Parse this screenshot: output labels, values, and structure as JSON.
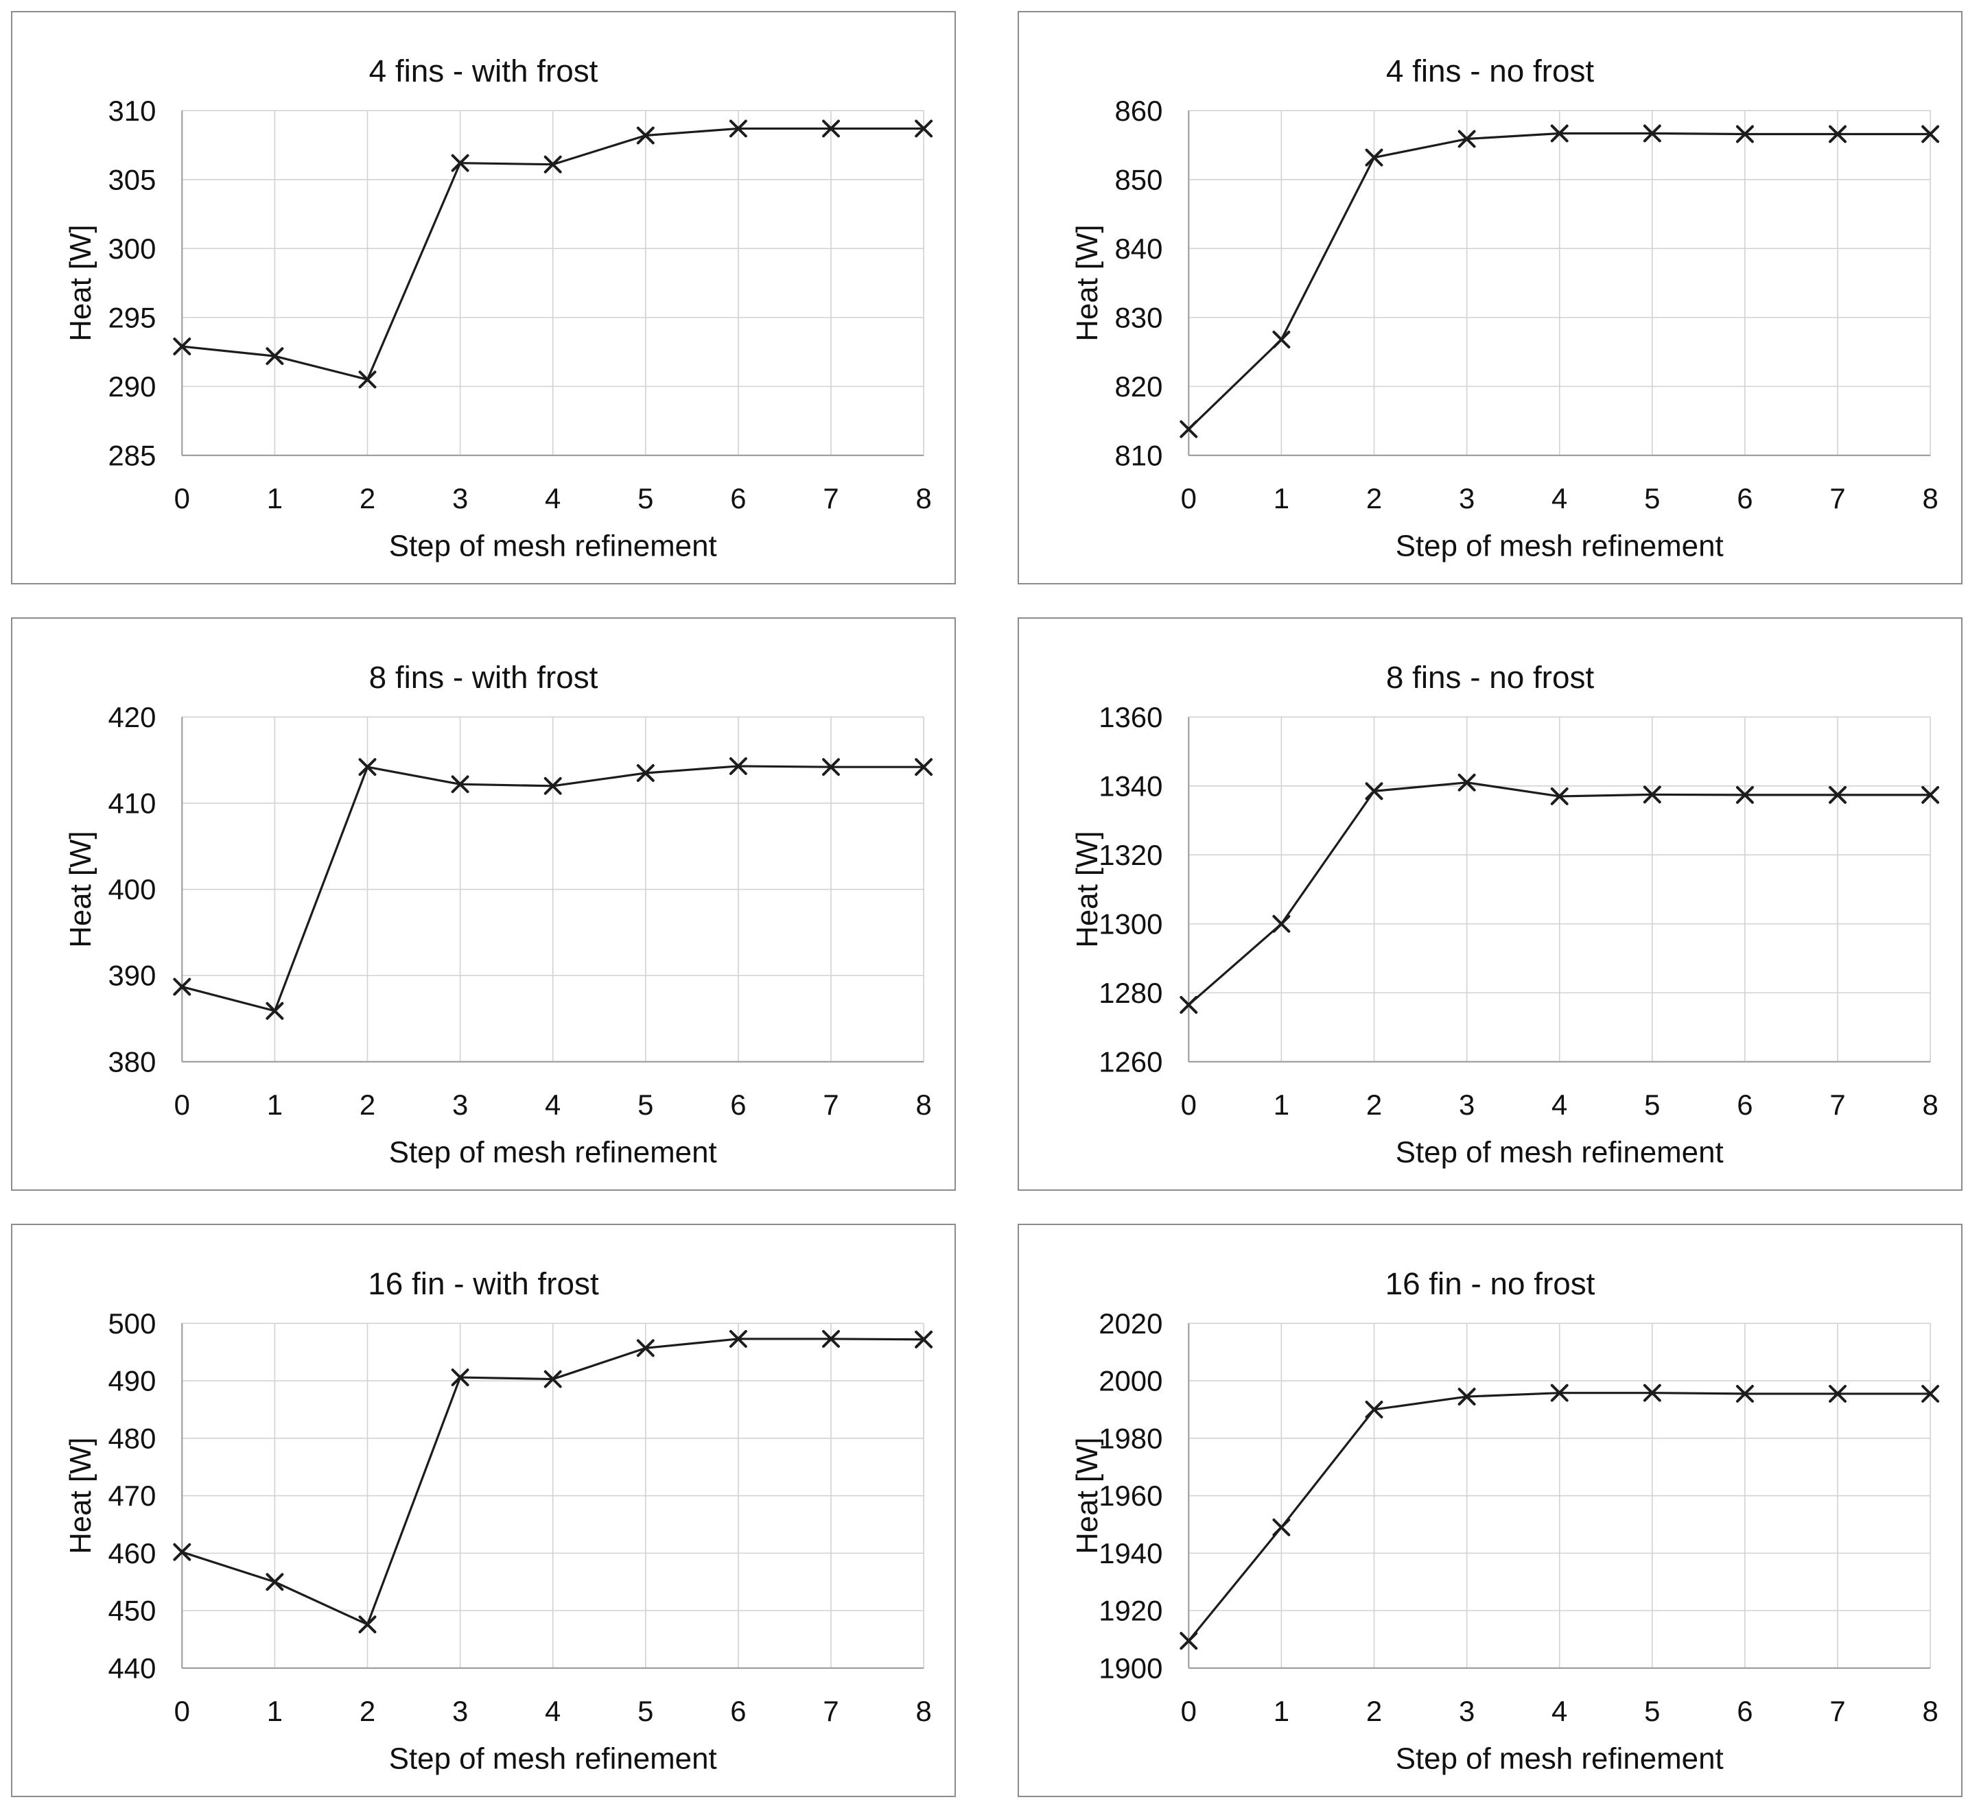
{
  "page": {
    "background": "#ffffff"
  },
  "style": {
    "series_color": "#1c1c1c",
    "grid_color": "#d2d2d2",
    "axis_color": "#a0a0a0",
    "text_color": "#111111",
    "panel_border_color": "#8c8c8c",
    "marker": "x"
  },
  "chart_data": [
    {
      "type": "line",
      "title": "4 fins - with frost",
      "xlabel": "Step of mesh refinement",
      "ylabel": "Heat [W]",
      "x": [
        0,
        1,
        2,
        3,
        4,
        5,
        6,
        7,
        8
      ],
      "values": [
        292.9,
        292.2,
        290.5,
        306.2,
        306.1,
        308.2,
        308.7,
        308.7,
        308.7
      ],
      "ylim": [
        285,
        310
      ],
      "ytick_step": 5,
      "xlim": [
        0,
        8
      ],
      "xtick_step": 1,
      "grid": true,
      "legend": "none",
      "marker": "x"
    },
    {
      "type": "line",
      "title": "4 fins - no frost",
      "xlabel": "Step of mesh refinement",
      "ylabel": "Heat [W]",
      "x": [
        0,
        1,
        2,
        3,
        4,
        5,
        6,
        7,
        8
      ],
      "values": [
        813.8,
        826.8,
        853.2,
        855.9,
        856.7,
        856.7,
        856.6,
        856.6,
        856.6
      ],
      "ylim": [
        810,
        860
      ],
      "ytick_step": 10,
      "xlim": [
        0,
        8
      ],
      "xtick_step": 1,
      "grid": true,
      "legend": "none",
      "marker": "x"
    },
    {
      "type": "line",
      "title": "8 fins - with frost",
      "xlabel": "Step of mesh refinement",
      "ylabel": "Heat [W]",
      "x": [
        0,
        1,
        2,
        3,
        4,
        5,
        6,
        7,
        8
      ],
      "values": [
        388.7,
        385.9,
        414.2,
        412.2,
        412.0,
        413.5,
        414.3,
        414.2,
        414.2
      ],
      "ylim": [
        380,
        420
      ],
      "ytick_step": 10,
      "xlim": [
        0,
        8
      ],
      "xtick_step": 1,
      "grid": true,
      "legend": "none",
      "marker": "x"
    },
    {
      "type": "line",
      "title": "8 fins - no frost",
      "xlabel": "Step of mesh refinement",
      "ylabel": "Heat [W]",
      "x": [
        0,
        1,
        2,
        3,
        4,
        5,
        6,
        7,
        8
      ],
      "values": [
        1276.5,
        1300,
        1338.5,
        1341,
        1337,
        1337.5,
        1337.4,
        1337.4,
        1337.4
      ],
      "ylim": [
        1260,
        1360
      ],
      "ytick_step": 20,
      "xlim": [
        0,
        8
      ],
      "xtick_step": 1,
      "grid": true,
      "legend": "none",
      "marker": "x"
    },
    {
      "type": "line",
      "title": "16 fin - with frost",
      "xlabel": "Step of mesh refinement",
      "ylabel": "Heat [W]",
      "x": [
        0,
        1,
        2,
        3,
        4,
        5,
        6,
        7,
        8
      ],
      "values": [
        460.2,
        455.0,
        447.6,
        490.6,
        490.3,
        495.7,
        497.3,
        497.3,
        497.2
      ],
      "ylim": [
        440,
        500
      ],
      "ytick_step": 10,
      "xlim": [
        0,
        8
      ],
      "xtick_step": 1,
      "grid": true,
      "legend": "none",
      "marker": "x"
    },
    {
      "type": "line",
      "title": "16 fin - no frost",
      "xlabel": "Step of mesh refinement",
      "ylabel": "Heat [W]",
      "x": [
        0,
        1,
        2,
        3,
        4,
        5,
        6,
        7,
        8
      ],
      "values": [
        1909.5,
        1949,
        1990,
        1994.5,
        1995.8,
        1995.8,
        1995.5,
        1995.5,
        1995.5
      ],
      "ylim": [
        1900,
        2020
      ],
      "ytick_step": 20,
      "xlim": [
        0,
        8
      ],
      "xtick_step": 1,
      "grid": true,
      "legend": "none",
      "marker": "x"
    }
  ]
}
